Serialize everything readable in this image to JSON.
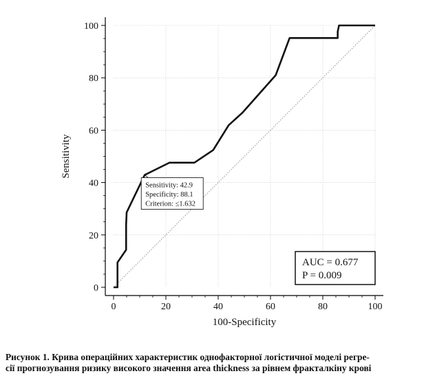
{
  "chart_data": {
    "type": "line",
    "xlabel": "100-Specificity",
    "ylabel": "Sensitivity",
    "xlim": [
      0,
      100
    ],
    "ylim": [
      0,
      100
    ],
    "xticks": [
      "0",
      "20",
      "40",
      "60",
      "80",
      "100"
    ],
    "yticks": [
      "0",
      "20",
      "40",
      "60",
      "80",
      "100"
    ],
    "grid": true,
    "series": [
      {
        "style": "solid-thick",
        "x": [
          0,
          1.5,
          1.5,
          4.8,
          4.8,
          5.0,
          5.0,
          11.9,
          21.4,
          30.9,
          38.1,
          44.0,
          49.3,
          62.0,
          67.3,
          85.7,
          85.7,
          86.2,
          100
        ],
        "y": [
          0,
          0,
          9.5,
          14.3,
          23.8,
          28.6,
          28.6,
          42.9,
          47.6,
          47.6,
          52.4,
          61.9,
          66.7,
          81.0,
          95.2,
          95.2,
          97.6,
          100,
          100
        ]
      },
      {
        "style": "dotted-diagonal",
        "x": [
          0,
          100
        ],
        "y": [
          0,
          100
        ]
      }
    ],
    "annotation": {
      "lines": [
        "Sensitivity: 42.9",
        "Specificity: 88.1",
        "Criterion: ≤1.632"
      ],
      "point": [
        11.9,
        42.9
      ]
    },
    "stats_box": {
      "lines": [
        "AUC = 0.677",
        "P = 0.009"
      ],
      "placement": "bottom-right"
    }
  },
  "caption": {
    "line1": "Рисунок 1. Крива операційних характеристик однофакторної логістичної моделі регре-",
    "line2": "сії прогнозування ризику високого значення area thickness за рівнем фракталкіну крові"
  }
}
